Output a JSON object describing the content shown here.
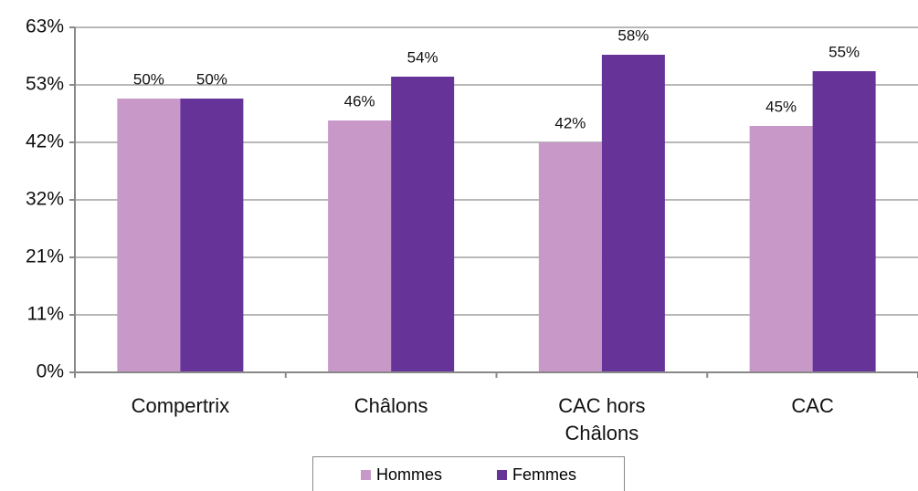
{
  "chart_data": {
    "type": "bar",
    "categories": [
      "Compertrix",
      "Châlons",
      "CAC hors Châlons",
      "CAC"
    ],
    "series": [
      {
        "name": "Hommes",
        "color": "#c898c9",
        "values": [
          50,
          46,
          42,
          45
        ],
        "value_labels": [
          "50%",
          "46%",
          "42%",
          "45%"
        ]
      },
      {
        "name": "Femmes",
        "color": "#663399",
        "values": [
          50,
          54,
          58,
          55
        ],
        "value_labels": [
          "50%",
          "54%",
          "58%",
          "55%"
        ]
      }
    ],
    "ylim": [
      0,
      63
    ],
    "yticks": [
      {
        "value": 0,
        "label": "0%"
      },
      {
        "value": 10.5,
        "label": "11%"
      },
      {
        "value": 21,
        "label": "21%"
      },
      {
        "value": 31.5,
        "label": "32%"
      },
      {
        "value": 42,
        "label": "42%"
      },
      {
        "value": 52.5,
        "label": "53%"
      },
      {
        "value": 63,
        "label": "63%"
      }
    ],
    "grid": true,
    "legend": "bottom"
  }
}
